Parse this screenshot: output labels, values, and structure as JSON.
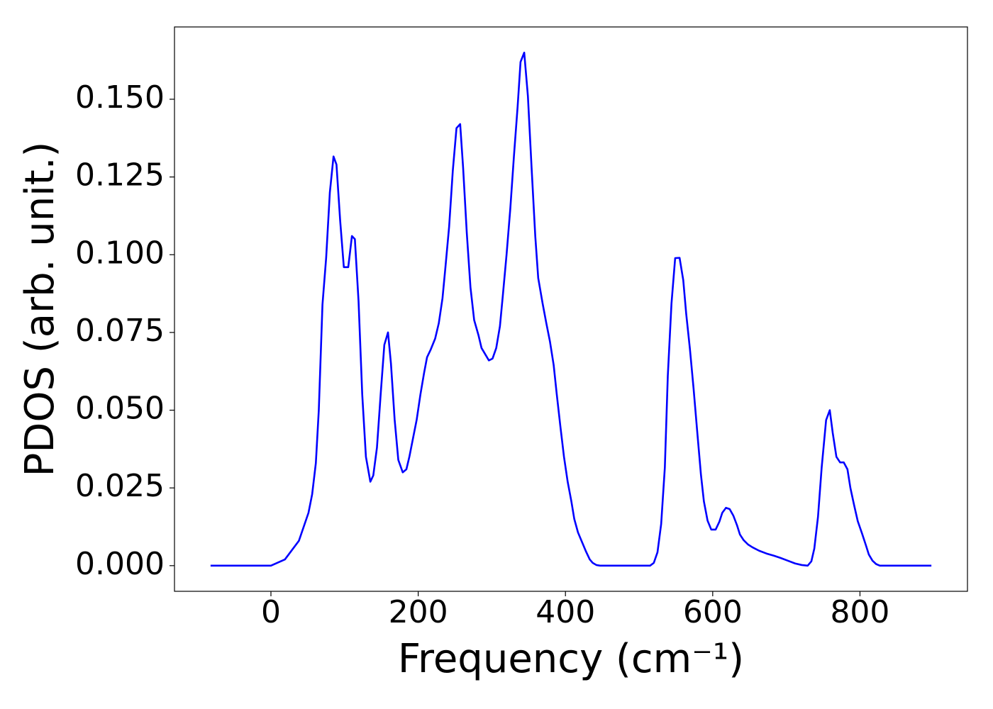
{
  "chart_data": {
    "type": "line",
    "xlabel": "Frequency (cm⁻¹)",
    "ylabel": "PDOS (arb. unit.)",
    "color": "#0000ff",
    "grid": false,
    "xlim": [
      -131,
      946
    ],
    "ylim": [
      -0.00825,
      0.17325
    ],
    "xticks": [
      0,
      200,
      400,
      600,
      800
    ],
    "yticks": [
      {
        "value": 0,
        "label": "0.000"
      },
      {
        "value": 0.025,
        "label": "0.025"
      },
      {
        "value": 0.05,
        "label": "0.050"
      },
      {
        "value": 0.075,
        "label": "0.075"
      },
      {
        "value": 0.1,
        "label": "0.100"
      },
      {
        "value": 0.125,
        "label": "0.125"
      },
      {
        "value": 0.15,
        "label": "0.150"
      }
    ],
    "x": [
      -82,
      0,
      19,
      38,
      51,
      56,
      61,
      65,
      70,
      75,
      80,
      85,
      89,
      94,
      99,
      105,
      110,
      114,
      119,
      124,
      129,
      135,
      139,
      144,
      149,
      154,
      159,
      163,
      168,
      173,
      179,
      184,
      188,
      193,
      198,
      203,
      208,
      212,
      217,
      223,
      228,
      233,
      237,
      242,
      247,
      252,
      257,
      261,
      266,
      271,
      276,
      282,
      286,
      291,
      296,
      301,
      306,
      311,
      315,
      320,
      325,
      330,
      335,
      339,
      344,
      349,
      354,
      359,
      363,
      369,
      374,
      379,
      384,
      388,
      393,
      398,
      403,
      408,
      412,
      417,
      423,
      428,
      433,
      437,
      442,
      447,
      515,
      520,
      525,
      530,
      535,
      539,
      544,
      549,
      555,
      560,
      564,
      569,
      574,
      579,
      584,
      588,
      593,
      598,
      604,
      609,
      613,
      618,
      623,
      628,
      633,
      637,
      642,
      648,
      654,
      663,
      673,
      683,
      692,
      702,
      712,
      721,
      729,
      734,
      738,
      743,
      748,
      754,
      759,
      763,
      768,
      773,
      778,
      783,
      787,
      792,
      797,
      803,
      808,
      812,
      817,
      822,
      827,
      897
    ],
    "values": [
      0,
      0,
      0.002,
      0.008,
      0.017,
      0.023,
      0.033,
      0.05,
      0.084,
      0.099,
      0.12,
      0.1316,
      0.129,
      0.111,
      0.096,
      0.096,
      0.106,
      0.105,
      0.085,
      0.055,
      0.035,
      0.027,
      0.029,
      0.038,
      0.055,
      0.071,
      0.075,
      0.065,
      0.047,
      0.034,
      0.03,
      0.031,
      0.035,
      0.041,
      0.047,
      0.055,
      0.062,
      0.067,
      0.0695,
      0.073,
      0.078,
      0.086,
      0.096,
      0.109,
      0.127,
      0.1407,
      0.142,
      0.128,
      0.107,
      0.0895,
      0.079,
      0.074,
      0.07,
      0.068,
      0.066,
      0.0666,
      0.07,
      0.077,
      0.087,
      0.1,
      0.1145,
      0.1316,
      0.1475,
      0.162,
      0.165,
      0.151,
      0.128,
      0.106,
      0.0925,
      0.0843,
      0.078,
      0.072,
      0.0645,
      0.0555,
      0.045,
      0.035,
      0.027,
      0.0207,
      0.015,
      0.0107,
      0.0073,
      0.0045,
      0.002,
      0.0009,
      0.0002,
      0,
      0,
      0.0009,
      0.0043,
      0.0134,
      0.0316,
      0.061,
      0.0843,
      0.0989,
      0.099,
      0.0918,
      0.081,
      0.0698,
      0.057,
      0.043,
      0.0293,
      0.0207,
      0.0145,
      0.0116,
      0.0116,
      0.0141,
      0.017,
      0.0186,
      0.0182,
      0.0161,
      0.013,
      0.01,
      0.0082,
      0.0068,
      0.0059,
      0.0048,
      0.0039,
      0.0032,
      0.0025,
      0.0016,
      0.0007,
      0.0002,
      0,
      0.0014,
      0.0055,
      0.0157,
      0.0316,
      0.0468,
      0.05,
      0.0427,
      0.035,
      0.0332,
      0.0332,
      0.031,
      0.025,
      0.0195,
      0.0143,
      0.0102,
      0.0066,
      0.0036,
      0.0016,
      0.0005,
      0,
      0
    ]
  }
}
